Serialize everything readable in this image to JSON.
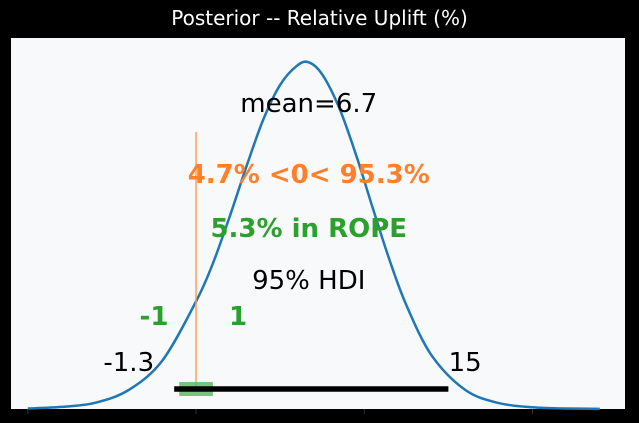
{
  "chart_data": {
    "type": "area",
    "title": "Posterior -- Relative Uplift (%)",
    "xlabel": "",
    "ylabel": "",
    "xlim": [
      -11.0,
      25.5
    ],
    "ylim": [
      0,
      1.07
    ],
    "axes_visible": {
      "left": false,
      "top": false,
      "right": false,
      "bottom": true
    },
    "x_ticks": [
      -10,
      0,
      10,
      20
    ],
    "x_tick_labels": [
      "",
      "",
      "",
      ""
    ],
    "grid": false,
    "series": [
      {
        "x": [
          -10.0,
          -8.0,
          -6.0,
          -4.0,
          -2.0,
          0.0,
          1.0,
          2.0,
          3.0,
          4.0,
          5.0,
          6.0,
          6.7,
          7.5,
          8.5,
          9.5,
          10.5,
          11.5,
          12.5,
          14.0,
          16.0,
          18.0,
          20.0,
          22.0,
          24.0
        ],
        "values": [
          0.0015,
          0.006,
          0.018,
          0.055,
          0.14,
          0.31,
          0.42,
          0.555,
          0.7,
          0.835,
          0.935,
          0.99,
          1.0,
          0.965,
          0.87,
          0.735,
          0.58,
          0.43,
          0.3,
          0.155,
          0.055,
          0.017,
          0.005,
          0.0015,
          0.0004
        ]
      }
    ],
    "reference_line": {
      "x": 0,
      "color": "#ff9d4f"
    },
    "rope": {
      "interval": [
        -1,
        1
      ],
      "color": "#54b95a"
    },
    "hdi": {
      "interval": [
        -1.3,
        15
      ],
      "label": "95% HDI",
      "lower_label": "-1.3",
      "upper_label": "15"
    },
    "annotations": {
      "mean": "mean=6.7",
      "reference": "4.7% <0< 95.3%",
      "rope": "5.3% in ROPE",
      "rope_low": "-1",
      "rope_high": "1"
    },
    "colors": {
      "curve": "#1f77b4",
      "reference_text": "#ff7f2a",
      "rope_text": "#2ca02c",
      "text": "#000000",
      "plot_bg": "#f7f9fb",
      "figure_bg": "#000000"
    }
  }
}
